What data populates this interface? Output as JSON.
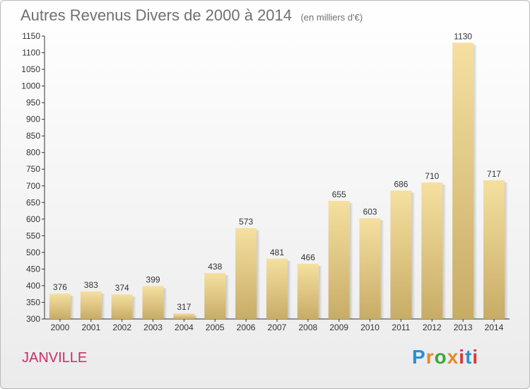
{
  "header": {
    "title": "Autres Revenus Divers de 2000 à 2014",
    "subtitle": "(en milliers d'€)"
  },
  "footer": {
    "town": "JANVILLE",
    "logo": [
      "P",
      "r",
      "o",
      "x",
      "i",
      "t",
      "i"
    ],
    "logo_colors": [
      "#2a8fd6",
      "#e8882a",
      "#3aa83a",
      "#e8882a",
      "#d63a3a",
      "#2a8fd6",
      "#d63a3a"
    ]
  },
  "chart_data": {
    "type": "bar",
    "title": "Autres Revenus Divers de 2000 à 2014",
    "subtitle": "(en milliers d'€)",
    "xlabel": "",
    "ylabel": "",
    "categories": [
      "2000",
      "2001",
      "2002",
      "2003",
      "2004",
      "2005",
      "2006",
      "2007",
      "2008",
      "2009",
      "2010",
      "2011",
      "2012",
      "2013",
      "2014"
    ],
    "values": [
      376,
      383,
      374,
      399,
      317,
      438,
      573,
      481,
      466,
      655,
      603,
      686,
      710,
      1130,
      717
    ],
    "data_labels": [
      "376",
      "383",
      "374",
      "399",
      "317",
      "438",
      "573",
      "481",
      "466",
      "655",
      "603",
      "686",
      "710",
      "1130",
      "717"
    ],
    "ylim": [
      300,
      1150
    ],
    "yticks": [
      "300",
      "350",
      "400",
      "450",
      "500",
      "550",
      "600",
      "650",
      "700",
      "750",
      "800",
      "850",
      "900",
      "950",
      "1000",
      "1050",
      "1100",
      "1150"
    ],
    "grid": false,
    "legend": "none",
    "bar_color_top": "#f5e0a0",
    "bar_color_bottom": "#c8ac66"
  }
}
